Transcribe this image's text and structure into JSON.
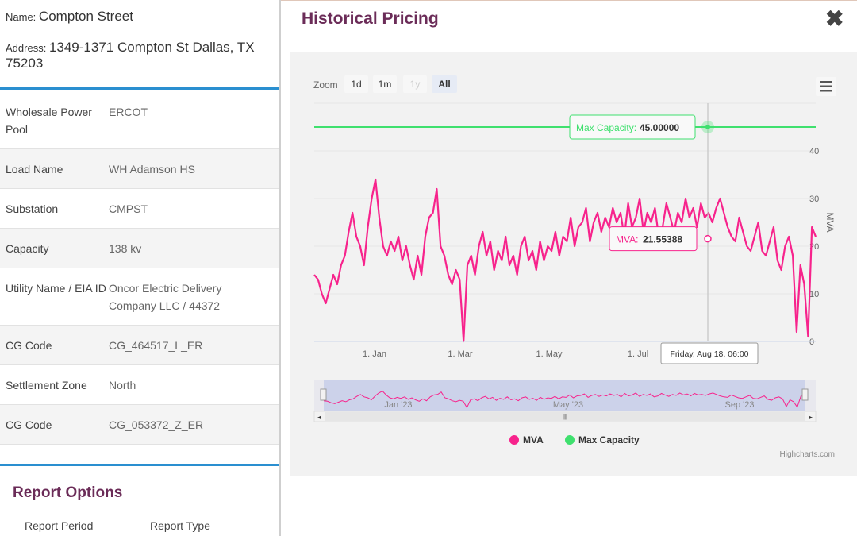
{
  "site": {
    "name_label": "Name:",
    "name": "Compton Street",
    "address_label": "Address:",
    "address": "1349-1371 Compton St Dallas, TX 75203"
  },
  "info_rows": [
    {
      "key": "Wholesale Power Pool",
      "value": "ERCOT"
    },
    {
      "key": "Load Name",
      "value": "WH Adamson HS"
    },
    {
      "key": "Substation",
      "value": "CMPST"
    },
    {
      "key": "Capacity",
      "value": "138 kv"
    },
    {
      "key": "Utility Name / EIA ID",
      "value": "Oncor Electric Delivery Company LLC / 44372"
    },
    {
      "key": "CG Code",
      "value": "CG_464517_L_ER"
    },
    {
      "key": "Settlement Zone",
      "value": "North"
    },
    {
      "key": "CG Code",
      "value": "CG_053372_Z_ER"
    }
  ],
  "report": {
    "title": "Report Options",
    "period_label": "Report Period",
    "type_label": "Report Type"
  },
  "panel": {
    "title": "Historical Pricing",
    "close_glyph": "✖"
  },
  "chart_data": {
    "type": "line",
    "zoom_label": "Zoom",
    "zoom_buttons": [
      "1d",
      "1m",
      "1y",
      "All"
    ],
    "zoom_selected": "All",
    "zoom_disabled": [
      "1y"
    ],
    "x_ticks": [
      "1. Jan",
      "1. Mar",
      "1. May",
      "1. Jul"
    ],
    "navigator_ticks": [
      "Jan '23",
      "May '23",
      "Sep '23"
    ],
    "ylabel": "MVA",
    "y_ticks": [
      0,
      10,
      20,
      30,
      40
    ],
    "ylim": [
      0,
      50
    ],
    "grid": true,
    "series": [
      {
        "name": "MVA",
        "color": "#f7238c",
        "values": [
          14,
          13,
          10,
          8,
          11,
          14,
          12,
          16,
          18,
          23,
          27,
          22,
          20,
          16,
          24,
          30,
          34,
          26,
          20,
          18,
          21,
          19,
          22,
          17,
          20,
          16,
          13,
          18,
          14,
          22,
          26,
          27,
          32,
          20,
          18,
          14,
          12,
          15,
          13,
          0,
          16,
          18,
          14,
          20,
          23,
          18,
          21,
          15,
          19,
          17,
          22,
          16,
          18,
          14,
          20,
          22,
          17,
          19,
          15,
          21,
          17,
          20,
          19,
          23,
          18,
          22,
          21,
          26,
          20,
          24,
          25,
          28,
          21,
          25,
          27,
          23,
          26,
          24,
          28,
          25,
          27,
          22,
          29,
          24,
          26,
          30,
          23,
          27,
          25,
          28,
          22,
          24,
          29,
          26,
          23,
          27,
          25,
          30,
          26,
          28,
          24,
          29,
          26,
          27,
          25,
          28,
          30,
          27,
          24,
          22,
          21,
          26,
          23,
          20,
          19,
          22,
          25,
          19,
          18,
          21,
          24,
          17,
          15,
          20,
          22,
          18,
          2,
          16,
          12,
          1,
          24,
          22
        ]
      },
      {
        "name": "Max Capacity",
        "color": "#3fe06e",
        "values": [
          45,
          45
        ]
      }
    ],
    "tooltips": {
      "max_capacity": {
        "label": "Max Capacity:",
        "value": "45.00000"
      },
      "mva": {
        "label": "MVA:",
        "value": "21.55388"
      },
      "date": "Friday, Aug 18, 06:00"
    },
    "legend": [
      {
        "name": "MVA",
        "color": "#f7238c"
      },
      {
        "name": "Max Capacity",
        "color": "#3fe06e"
      }
    ],
    "legend_position": "bottom",
    "credits": "Highcharts.com"
  }
}
